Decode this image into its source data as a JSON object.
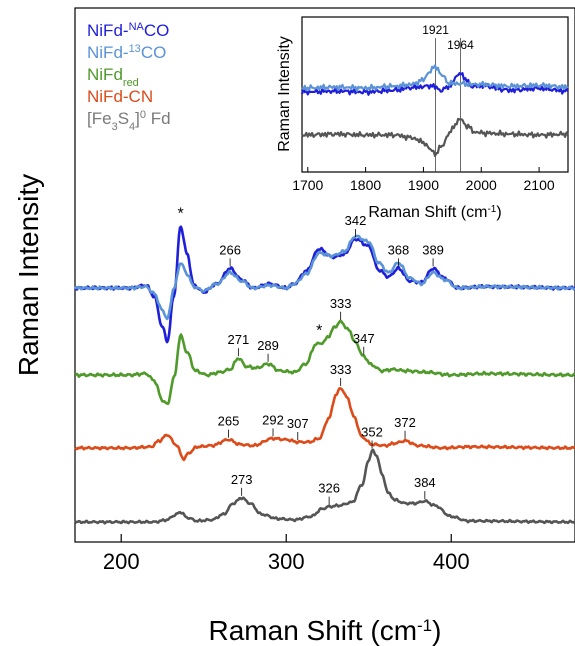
{
  "chart_data": {
    "type": "line",
    "xlabel": "Raman Shift (cm",
    "xlabel_sup": "-1",
    "xlabel_close": ")",
    "ylabel": "Raman Intensity",
    "xlim": [
      172,
      475
    ],
    "xticks": [
      200,
      300,
      400
    ],
    "legend_position": "top-left",
    "legend": [
      {
        "parts": [
          {
            "t": "NiFd-"
          },
          {
            "t": "NA",
            "sup": true
          },
          {
            "t": "CO"
          }
        ],
        "color": "#1f1fd9"
      },
      {
        "parts": [
          {
            "t": "NiFd-"
          },
          {
            "t": "13",
            "sup": true
          },
          {
            "t": "CO"
          }
        ],
        "color": "#5b93d6"
      },
      {
        "parts": [
          {
            "t": "NiFd"
          },
          {
            "t": "red",
            "sub": true
          }
        ],
        "color": "#4f9a2a"
      },
      {
        "parts": [
          {
            "t": "NiFd-CN"
          }
        ],
        "color": "#dc4b19"
      },
      {
        "parts": [
          {
            "t": "[Fe"
          },
          {
            "t": "3",
            "sub": true
          },
          {
            "t": "S"
          },
          {
            "t": "4",
            "sub": true
          },
          {
            "t": "]"
          },
          {
            "t": "0",
            "sup": true
          },
          {
            "t": " Fd"
          }
        ],
        "color": "#7a7a7a"
      }
    ],
    "series": [
      {
        "name": "NiFd-NACO",
        "color": "#1f1fd9",
        "x": [
          172,
          205,
          215,
          220,
          225,
          228,
          232,
          236,
          240,
          244,
          250,
          258,
          266,
          273,
          280,
          290,
          300,
          305,
          312,
          320,
          328,
          335,
          342,
          350,
          356,
          362,
          368,
          375,
          382,
          389,
          396,
          404,
          420,
          475
        ],
        "y": [
          0,
          0,
          0.2,
          -0.6,
          -2.8,
          -3.8,
          -0.5,
          4.4,
          2.4,
          0.2,
          -0.3,
          0.3,
          1.4,
          0.6,
          0.0,
          0.3,
          0.0,
          0.3,
          1.2,
          2.8,
          2.2,
          2.4,
          3.5,
          3.0,
          1.3,
          0.8,
          1.4,
          0.5,
          0.4,
          1.4,
          0.7,
          0.0,
          0.1,
          0
        ]
      },
      {
        "name": "NiFd-13CO",
        "color": "#5b93d6",
        "x": [
          172,
          205,
          215,
          220,
          225,
          228,
          232,
          236,
          240,
          244,
          250,
          258,
          266,
          273,
          280,
          290,
          300,
          305,
          312,
          320,
          328,
          335,
          342,
          350,
          356,
          362,
          368,
          375,
          382,
          389,
          396,
          404,
          420,
          475
        ],
        "y": [
          0,
          0,
          0.1,
          -0.4,
          -1.6,
          -2.2,
          0.0,
          1.8,
          1.0,
          0.1,
          -0.2,
          0.3,
          1.1,
          0.5,
          0.0,
          0.2,
          0.0,
          0.3,
          1.0,
          2.5,
          2.3,
          2.6,
          3.7,
          3.3,
          1.8,
          1.1,
          1.8,
          0.7,
          0.3,
          1.1,
          0.6,
          0.0,
          0.1,
          0
        ]
      },
      {
        "name": "NiFdred",
        "color": "#4f9a2a",
        "x": [
          172,
          205,
          215,
          220,
          225,
          228,
          232,
          236,
          240,
          245,
          252,
          260,
          266,
          271,
          276,
          282,
          289,
          296,
          305,
          312,
          318,
          322,
          326,
          329,
          333,
          338,
          342,
          347,
          352,
          358,
          365,
          372,
          385,
          400,
          420,
          475
        ],
        "y": [
          0,
          0,
          0.1,
          -0.4,
          -1.8,
          -2.1,
          -0.2,
          2.8,
          1.6,
          0.3,
          0.0,
          0.2,
          0.4,
          1.2,
          0.6,
          0.5,
          0.8,
          0.3,
          0.2,
          0.8,
          2.2,
          2.3,
          2.8,
          3.4,
          3.8,
          3.2,
          2.3,
          1.3,
          0.7,
          0.3,
          0.4,
          0.3,
          0.2,
          0.0,
          0.1,
          0
        ]
      },
      {
        "name": "NiFd-CN",
        "color": "#dc4b19",
        "x": [
          172,
          205,
          218,
          223,
          228,
          233,
          238,
          241,
          246,
          255,
          265,
          272,
          280,
          292,
          300,
          307,
          314,
          320,
          326,
          330,
          333,
          337,
          341,
          346,
          352,
          360,
          366,
          372,
          380,
          395,
          410,
          475
        ],
        "y": [
          0,
          0,
          0.1,
          0.6,
          1.1,
          0.3,
          -0.9,
          -0.4,
          0.1,
          0.2,
          0.7,
          0.3,
          0.2,
          0.8,
          0.7,
          0.5,
          0.5,
          0.8,
          2.5,
          4.4,
          5.0,
          4.2,
          2.6,
          0.9,
          0.3,
          0.2,
          0.4,
          0.6,
          0.2,
          0.0,
          0.1,
          0
        ]
      },
      {
        "name": "[Fe3S4]0 Fd",
        "color": "#555555",
        "x": [
          172,
          220,
          228,
          232,
          236,
          240,
          246,
          255,
          262,
          268,
          273,
          278,
          285,
          295,
          305,
          315,
          322,
          326,
          332,
          340,
          346,
          350,
          352,
          355,
          358,
          362,
          366,
          372,
          378,
          384,
          390,
          400,
          410,
          475
        ],
        "y": [
          0,
          0,
          0.2,
          0.6,
          0.9,
          0.4,
          0.1,
          0.2,
          0.7,
          1.7,
          2.2,
          1.7,
          0.7,
          0.3,
          0.2,
          0.5,
          1.2,
          1.4,
          1.5,
          1.8,
          3.4,
          5.6,
          6.5,
          6.0,
          4.3,
          2.6,
          2.0,
          1.7,
          1.7,
          1.9,
          1.5,
          0.5,
          0.1,
          0
        ]
      }
    ],
    "peak_labels": [
      {
        "text": "*",
        "x": 236,
        "series": 0
      },
      {
        "text": "266",
        "x": 266,
        "series": 0
      },
      {
        "text": "342",
        "x": 342,
        "series": 0
      },
      {
        "text": "368",
        "x": 368,
        "series": 0
      },
      {
        "text": "389",
        "x": 389,
        "series": 0
      },
      {
        "text": "271",
        "x": 271,
        "series": 2
      },
      {
        "text": "289",
        "x": 289,
        "series": 2
      },
      {
        "text": "*",
        "x": 320,
        "series": 2
      },
      {
        "text": "333",
        "x": 333,
        "series": 2
      },
      {
        "text": "347",
        "x": 347,
        "series": 2
      },
      {
        "text": "265",
        "x": 265,
        "series": 3
      },
      {
        "text": "292",
        "x": 292,
        "series": 3
      },
      {
        "text": "307",
        "x": 307,
        "series": 3
      },
      {
        "text": "333",
        "x": 333,
        "series": 3
      },
      {
        "text": "372",
        "x": 372,
        "series": 3
      },
      {
        "text": "273",
        "x": 273,
        "series": 4
      },
      {
        "text": "326",
        "x": 326,
        "series": 4
      },
      {
        "text": "352",
        "x": 352,
        "series": 4
      },
      {
        "text": "384",
        "x": 384,
        "series": 4
      }
    ],
    "inset": {
      "xlabel": "Raman Shift (cm",
      "xlabel_sup": "-1",
      "xlabel_close": ")",
      "ylabel": "Raman Intensity",
      "xlim": [
        1690,
        2150
      ],
      "xticks": [
        1700,
        1800,
        1900,
        2000,
        2100
      ],
      "vlines": [
        {
          "x": 1921,
          "label": "1921"
        },
        {
          "x": 1964,
          "label": "1964"
        }
      ],
      "series": [
        {
          "name": "NiFd-NACO",
          "color": "#1f1fd9",
          "x": [
            1690,
            1750,
            1800,
            1850,
            1880,
            1900,
            1915,
            1930,
            1945,
            1955,
            1964,
            1972,
            1985,
            2000,
            2050,
            2100,
            2150
          ],
          "y": [
            0,
            0.1,
            0,
            0.2,
            0.5,
            0.6,
            0.7,
            0.2,
            0.6,
            1.5,
            2.2,
            1.4,
            0.6,
            0.7,
            0.2,
            0.4,
            0.1
          ]
        },
        {
          "name": "NiFd-13CO",
          "color": "#5b93d6",
          "x": [
            1690,
            1750,
            1800,
            1850,
            1880,
            1900,
            1910,
            1921,
            1932,
            1945,
            1964,
            1980,
            2000,
            2050,
            2100,
            2150
          ],
          "y": [
            0,
            0.1,
            0,
            0.2,
            0.4,
            0.9,
            1.8,
            2.4,
            1.4,
            0.5,
            0.5,
            0.4,
            0.4,
            0.2,
            0.3,
            0.1
          ]
        },
        {
          "name": "[Fe3S4]0 Fd",
          "color": "#555555",
          "x": [
            1690,
            1750,
            1800,
            1850,
            1880,
            1900,
            1912,
            1921,
            1932,
            1945,
            1955,
            1964,
            1975,
            1990,
            2010,
            2050,
            2100,
            2150
          ],
          "y": [
            0,
            0.1,
            0.0,
            0.0,
            -0.3,
            -0.8,
            -1.6,
            -2.1,
            -1.2,
            0.2,
            1.2,
            1.8,
            1.0,
            0.3,
            0.2,
            0.1,
            0.0,
            0.1
          ]
        }
      ]
    }
  }
}
